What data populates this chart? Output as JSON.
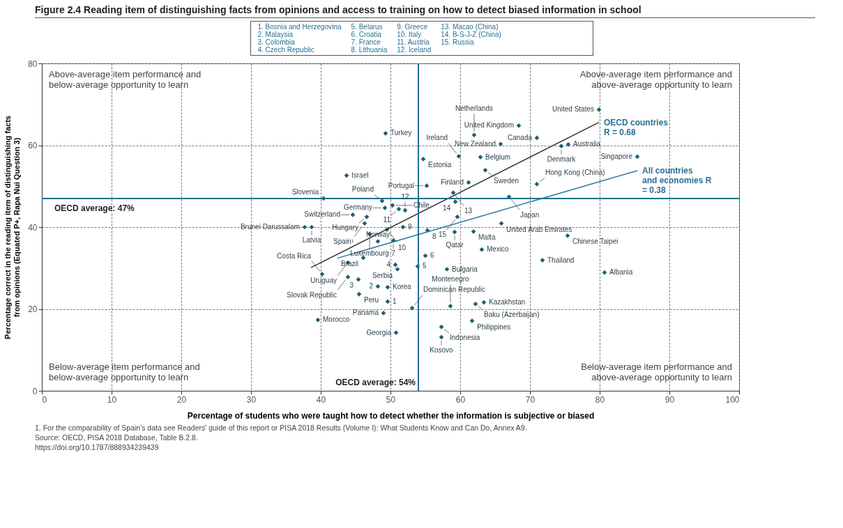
{
  "chart_data": {
    "type": "scatter",
    "title": "Figure 2.4 Reading item of distinguishing facts from opinions and access to training on how to detect biased information in school",
    "xlabel": "Percentage of students who were taught how to detect whether the information is subjective or biased",
    "ylabel": "Percentage correct in the reading item of distinguishing facts from opinions (Equated P+, Rapa Nui Question 3)",
    "xlim": [
      0,
      100
    ],
    "ylim": [
      0,
      80
    ],
    "xticks": [
      0,
      10,
      20,
      30,
      40,
      50,
      60,
      70,
      80,
      90,
      100
    ],
    "yticks": [
      0,
      20,
      40,
      60,
      80
    ],
    "grid": true,
    "series": [
      {
        "color": "#1f5f73",
        "marker": "diamond",
        "x": [
          79.9,
          68.4,
          65.8,
          71.0,
          75.5,
          74.5,
          85.4,
          62.0,
          49.3,
          54.7,
          59.8,
          62.9,
          63.6,
          61.2,
          71.0,
          43.7,
          55.2,
          48.8,
          49.2,
          50.3,
          51.2,
          52.1,
          40.4,
          46.6,
          44.6,
          46.3,
          38.7,
          37.7,
          49.5,
          51.8,
          55.3,
          59.2,
          61.9,
          59.0,
          59.3,
          59.6,
          67.0,
          65.9,
          75.4,
          63.1,
          71.8,
          80.7,
          58.1,
          55.0,
          53.9,
          50.7,
          51.0,
          50.4,
          46.1,
          43.9,
          47.0,
          48.2,
          45.4,
          43.9,
          40.2,
          48.2,
          49.6,
          45.5,
          49.6,
          49.0,
          53.1,
          50.8,
          58.6,
          63.4,
          62.2,
          61.7,
          57.3,
          57.3,
          39.6
        ],
        "values": [
          68.7,
          64.8,
          60.3,
          61.8,
          60.2,
          59.8,
          57.2,
          62.5,
          62.9,
          56.6,
          57.3,
          57.1,
          53.9,
          50.9,
          50.5,
          52.6,
          50.1,
          46.4,
          44.7,
          45.3,
          44.4,
          44.1,
          47.0,
          42.5,
          43.0,
          40.9,
          40.0,
          40.0,
          39.4,
          40.0,
          39.2,
          38.8,
          38.9,
          48.4,
          46.2,
          42.5,
          47.4,
          40.9,
          37.9,
          34.5,
          31.9,
          28.9,
          29.7,
          33.0,
          30.4,
          30.8,
          29.7,
          36.7,
          32.5,
          31.3,
          38.3,
          36.5,
          27.2,
          27.8,
          28.5,
          25.5,
          25.3,
          23.6,
          21.8,
          19.0,
          20.2,
          14.2,
          20.7,
          21.6,
          21.2,
          17.1,
          15.6,
          13.1,
          17.3
        ]
      },
      {
        "type": "line",
        "color": "#333333",
        "x": [
          38.6,
          79.9
        ],
        "values": [
          30.1,
          65.6
        ]
      },
      {
        "type": "line",
        "color": "#2e7ca3",
        "x": [
          42.4,
          85.4
        ],
        "values": [
          32.4,
          53.8
        ]
      }
    ],
    "ref_lines": [
      {
        "axis": "y",
        "value": 47,
        "label": "OECD average: 47%",
        "color": "#1f6f8f"
      },
      {
        "axis": "x",
        "value": 54,
        "label": "OECD average: 54%",
        "color": "#1f6f8f"
      }
    ],
    "annotations": [
      "Above-average item performance and below-average opportunity to learn",
      "Above-average item performance and above-average opportunity to learn",
      "Below-average item performance and below-average opportunity to learn",
      "Below-average item performance and above-average opportunity to learn",
      {
        "text": "OECD countries R = 0.68",
        "x": 79.9,
        "y": 65.6
      },
      {
        "text": "All countries and economies R = 0.38",
        "x": 85.4,
        "y": 53.8
      },
      {
        "text": "United States",
        "x": 79.9,
        "y": 68.7
      },
      {
        "text": "United Kingdom",
        "x": 68.4,
        "y": 64.8
      },
      {
        "text": "New Zealand",
        "x": 65.8,
        "y": 60.3
      },
      {
        "text": "Canada",
        "x": 71.0,
        "y": 61.8
      },
      {
        "text": "Australia",
        "x": 75.5,
        "y": 60.2
      },
      {
        "text": "Denmark",
        "x": 74.5,
        "y": 59.8
      },
      {
        "text": "Singapore",
        "x": 85.4,
        "y": 57.2
      },
      {
        "text": "Netherlands",
        "x": 62.0,
        "y": 62.5
      },
      {
        "text": "Turkey",
        "x": 49.3,
        "y": 62.9
      },
      {
        "text": "Estonia",
        "x": 54.7,
        "y": 56.6
      },
      {
        "text": "Ireland",
        "x": 59.8,
        "y": 57.3
      },
      {
        "text": "Belgium",
        "x": 62.9,
        "y": 57.1
      },
      {
        "text": "Sweden",
        "x": 63.6,
        "y": 53.9
      },
      {
        "text": "Finland",
        "x": 61.2,
        "y": 50.9
      },
      {
        "text": "Hong Kong (China)",
        "x": 71.0,
        "y": 50.5
      },
      {
        "text": "Israel",
        "x": 43.7,
        "y": 52.6
      },
      {
        "text": "Portugal",
        "x": 55.2,
        "y": 50.1
      },
      {
        "text": "Poland",
        "x": 48.8,
        "y": 46.4
      },
      {
        "text": "Germany",
        "x": 49.2,
        "y": 44.7
      },
      {
        "text": "Chile",
        "x": 50.3,
        "y": 45.3
      },
      {
        "text": "11",
        "x": 51.2,
        "y": 44.4
      },
      {
        "text": "12",
        "x": 52.1,
        "y": 44.1
      },
      {
        "text": "Slovenia",
        "x": 40.4,
        "y": 47.0
      },
      {
        "text": "Hungary",
        "x": 46.6,
        "y": 42.5
      },
      {
        "text": "Switzerland",
        "x": 44.6,
        "y": 43.0
      },
      {
        "text": "Spain¹",
        "x": 46.3,
        "y": 40.9
      },
      {
        "text": "Latvia",
        "x": 38.7,
        "y": 40.0
      },
      {
        "text": "Brunei Darussalam",
        "x": 37.7,
        "y": 40.0
      },
      {
        "text": "10",
        "x": 49.5,
        "y": 39.4
      },
      {
        "text": "9",
        "x": 51.8,
        "y": 40.0
      },
      {
        "text": "8",
        "x": 55.3,
        "y": 39.2
      },
      {
        "text": "Qatar",
        "x": 59.2,
        "y": 38.8
      },
      {
        "text": "Malta",
        "x": 61.9,
        "y": 38.9
      },
      {
        "text": "13",
        "x": 59.0,
        "y": 48.4
      },
      {
        "text": "14",
        "x": 59.3,
        "y": 46.2
      },
      {
        "text": "15",
        "x": 59.6,
        "y": 42.5
      },
      {
        "text": "Japan",
        "x": 67.0,
        "y": 47.4
      },
      {
        "text": "United Arab Emirates",
        "x": 65.9,
        "y": 40.9
      },
      {
        "text": "Chinese Taipei",
        "x": 75.4,
        "y": 37.9
      },
      {
        "text": "Mexico",
        "x": 63.1,
        "y": 34.5
      },
      {
        "text": "Thailand",
        "x": 71.8,
        "y": 31.9
      },
      {
        "text": "Albania",
        "x": 80.7,
        "y": 28.9
      },
      {
        "text": "Bulgaria",
        "x": 58.1,
        "y": 29.7
      },
      {
        "text": "6",
        "x": 55.0,
        "y": 33.0
      },
      {
        "text": "5",
        "x": 53.9,
        "y": 30.4
      },
      {
        "text": "4",
        "x": 50.7,
        "y": 30.8
      },
      {
        "text": "Serbia",
        "x": 51.0,
        "y": 29.7
      },
      {
        "text": "7",
        "x": 50.4,
        "y": 36.7
      },
      {
        "text": "Brazil",
        "x": 46.1,
        "y": 32.5
      },
      {
        "text": "Uruguay",
        "x": 43.9,
        "y": 31.3
      },
      {
        "text": "Luxembourg",
        "x": 47.0,
        "y": 38.3
      },
      {
        "text": "Norway",
        "x": 48.2,
        "y": 36.5
      },
      {
        "text": "3",
        "x": 45.4,
        "y": 27.2
      },
      {
        "text": "Slovak Republic",
        "x": 43.9,
        "y": 27.8
      },
      {
        "text": "Costa Rica",
        "x": 40.2,
        "y": 28.5
      },
      {
        "text": "2",
        "x": 48.2,
        "y": 25.5
      },
      {
        "text": "Korea",
        "x": 49.6,
        "y": 25.3
      },
      {
        "text": "Peru",
        "x": 45.5,
        "y": 23.6
      },
      {
        "text": "1",
        "x": 49.6,
        "y": 21.8
      },
      {
        "text": "Panama",
        "x": 49.0,
        "y": 19.0
      },
      {
        "text": "Dominican Republic",
        "x": 53.1,
        "y": 20.2
      },
      {
        "text": "Georgia",
        "x": 50.8,
        "y": 14.2
      },
      {
        "text": "Montenegro",
        "x": 58.6,
        "y": 20.7
      },
      {
        "text": "Kazakhstan",
        "x": 63.4,
        "y": 21.6
      },
      {
        "text": "Baku (Azerbaijan)",
        "x": 62.2,
        "y": 21.2
      },
      {
        "text": "Philippines",
        "x": 61.7,
        "y": 17.1
      },
      {
        "text": "Indonesia",
        "x": 57.3,
        "y": 15.6
      },
      {
        "text": "Kosovo",
        "x": 57.3,
        "y": 13.1
      },
      {
        "text": "Morocco",
        "x": 39.6,
        "y": 17.3
      },
      "1. Bosnia and Herzegovina",
      "2. Malaysia",
      "3. Colombia",
      "4. Czech Republic",
      "5. Belarus",
      "6. Croatia",
      "7. France",
      "8. Lithuania",
      "9. Greece",
      "10. Italy",
      "11. Austria",
      "12. Iceland",
      "13. Macao (China)",
      "14. B-S-J-Z (China)",
      "15. Russia",
      "1. For the comparability of Spain's data see Readers' guide of this report or PISA 2018 Results (Volume I): What Students Know and Can Do, Annex A9.",
      "Source: OECD, PISA 2018 Database, Table B.2.8.",
      "https://doi.org/10.1787/888934239439"
    ]
  }
}
